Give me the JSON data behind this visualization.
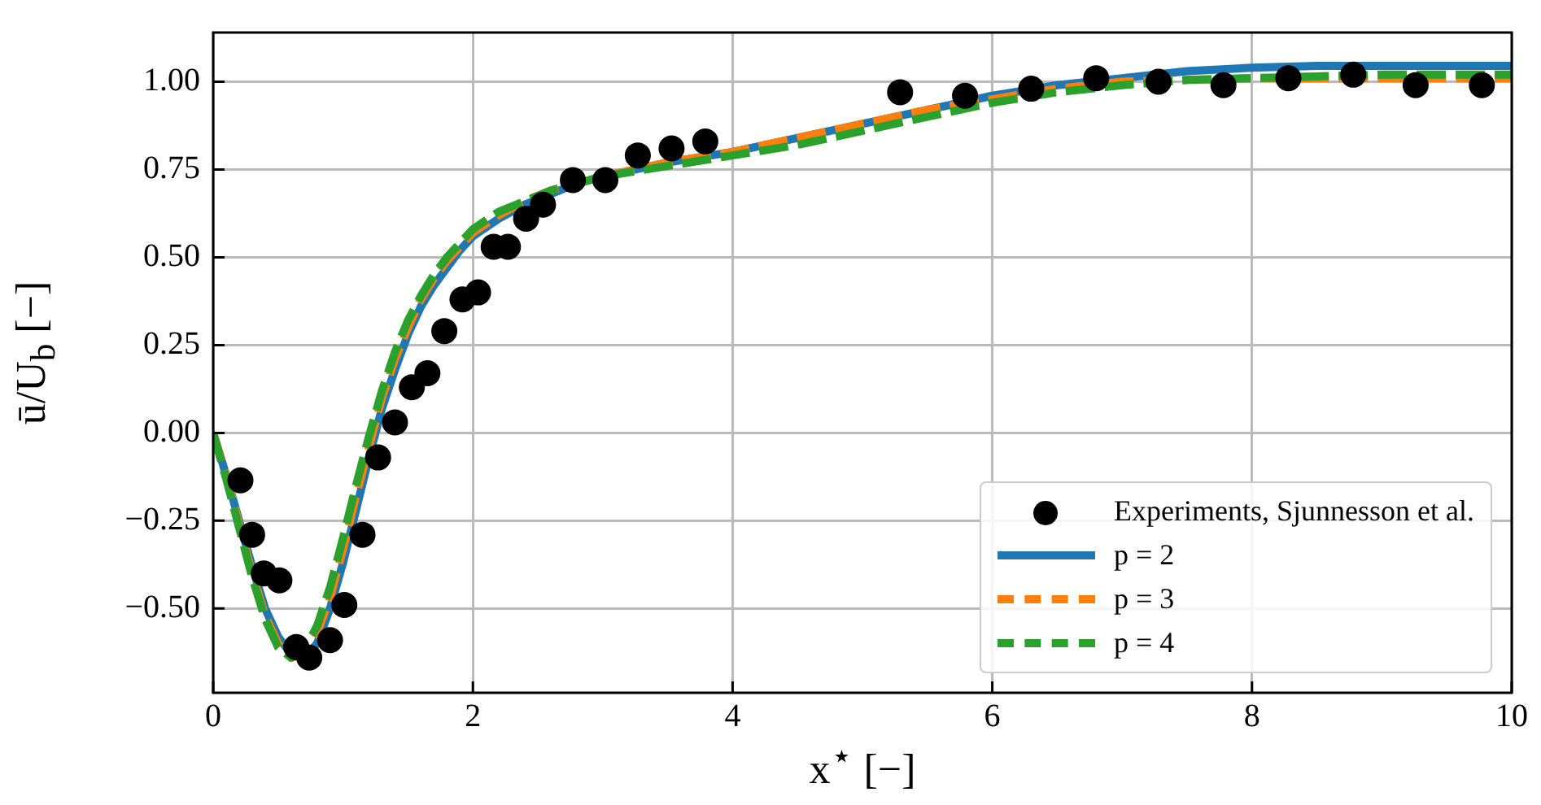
{
  "chart_data": {
    "type": "line",
    "xlabel": "x$^{⋆}$ [−]",
    "ylabel": "ū/U$_{b}$ [−]",
    "xlim": [
      0,
      10
    ],
    "xticks": [
      0,
      2,
      4,
      6,
      8,
      10
    ],
    "ylim": [
      -0.74,
      1.14
    ],
    "yticks": [
      {
        "value": -0.5,
        "label": "−0.50"
      },
      {
        "value": -0.25,
        "label": "−0.25"
      },
      {
        "value": 0,
        "label": "0.00"
      },
      {
        "value": 0.25,
        "label": "0.25"
      },
      {
        "value": 0.5,
        "label": "0.50"
      },
      {
        "value": 0.75,
        "label": "0.75"
      },
      {
        "value": 1,
        "label": "1.00"
      }
    ],
    "grid": true,
    "legend": "bottom right",
    "series": [
      {
        "name": "Experiments, Sjunnesson et al.",
        "type": "scatter",
        "marker": "circle",
        "color": "#000000",
        "x": [
          0.21,
          0.3,
          0.39,
          0.51,
          0.64,
          0.74,
          0.9,
          1.01,
          1.15,
          1.27,
          1.4,
          1.53,
          1.65,
          1.78,
          1.92,
          2.04,
          2.16,
          2.27,
          2.41,
          2.54,
          2.77,
          3.02,
          3.27,
          3.53,
          3.79,
          5.29,
          5.79,
          6.3,
          6.8,
          7.28,
          7.78,
          8.28,
          8.78,
          9.26,
          9.77
        ],
        "values": [
          -0.135,
          -0.29,
          -0.4,
          -0.42,
          -0.61,
          -0.64,
          -0.59,
          -0.49,
          -0.29,
          -0.07,
          0.03,
          0.13,
          0.17,
          0.29,
          0.38,
          0.4,
          0.53,
          0.53,
          0.61,
          0.65,
          0.72,
          0.72,
          0.79,
          0.81,
          0.83,
          0.97,
          0.96,
          0.98,
          1.01,
          1.0,
          0.99,
          1.01,
          1.02,
          0.99,
          0.99
        ]
      },
      {
        "name": "p = 2",
        "type": "line",
        "marker": "none",
        "line_style": "solid",
        "color": "#1f77b4",
        "x": [
          0,
          0.1,
          0.2,
          0.3,
          0.4,
          0.5,
          0.6,
          0.7,
          0.8,
          0.9,
          1.0,
          1.1,
          1.2,
          1.3,
          1.4,
          1.5,
          1.6,
          1.7,
          1.8,
          1.9,
          2.0,
          2.2,
          2.4,
          2.6,
          2.8,
          3.0,
          3.5,
          4,
          4.5,
          5,
          5.5,
          6,
          6.5,
          7,
          7.5,
          8,
          8.5,
          9,
          9.5,
          10
        ],
        "values": [
          0,
          -0.12,
          -0.25,
          -0.38,
          -0.5,
          -0.58,
          -0.63,
          -0.64,
          -0.6,
          -0.5,
          -0.37,
          -0.22,
          -0.07,
          0.07,
          0.18,
          0.28,
          0.36,
          0.42,
          0.47,
          0.52,
          0.56,
          0.61,
          0.65,
          0.68,
          0.71,
          0.73,
          0.77,
          0.8,
          0.84,
          0.88,
          0.92,
          0.96,
          0.99,
          1.01,
          1.03,
          1.04,
          1.045,
          1.045,
          1.045,
          1.045
        ]
      },
      {
        "name": "p = 3",
        "type": "line",
        "marker": "none",
        "line_style": "dashed",
        "color": "#ff7f0e",
        "x": [
          0,
          0.1,
          0.2,
          0.3,
          0.4,
          0.5,
          0.6,
          0.7,
          0.8,
          0.9,
          1.0,
          1.1,
          1.2,
          1.3,
          1.4,
          1.5,
          1.6,
          1.7,
          1.8,
          1.9,
          2.0,
          2.2,
          2.4,
          2.6,
          2.8,
          3.0,
          3.5,
          4,
          4.5,
          5,
          5.5,
          6,
          6.5,
          7,
          7.5,
          8,
          8.5,
          9,
          9.5,
          10
        ],
        "values": [
          0,
          -0.12,
          -0.26,
          -0.4,
          -0.52,
          -0.6,
          -0.64,
          -0.63,
          -0.57,
          -0.47,
          -0.33,
          -0.18,
          -0.04,
          0.1,
          0.21,
          0.3,
          0.38,
          0.44,
          0.49,
          0.53,
          0.57,
          0.62,
          0.66,
          0.69,
          0.71,
          0.73,
          0.77,
          0.8,
          0.84,
          0.88,
          0.92,
          0.95,
          0.98,
          1.0,
          1.005,
          1.01,
          1.01,
          1.01,
          1.01,
          1.01
        ]
      },
      {
        "name": "p = 4",
        "type": "line",
        "marker": "none",
        "line_style": "dashed",
        "color": "#2ca02c",
        "x": [
          0,
          0.1,
          0.2,
          0.3,
          0.4,
          0.5,
          0.6,
          0.7,
          0.8,
          0.9,
          1.0,
          1.1,
          1.2,
          1.3,
          1.4,
          1.5,
          1.6,
          1.7,
          1.8,
          1.9,
          2.0,
          2.2,
          2.4,
          2.6,
          2.8,
          3.0,
          3.5,
          4,
          4.5,
          5,
          5.5,
          6,
          6.5,
          7,
          7.5,
          8,
          8.5,
          9,
          9.5,
          10
        ],
        "values": [
          0,
          -0.13,
          -0.27,
          -0.41,
          -0.53,
          -0.61,
          -0.64,
          -0.62,
          -0.55,
          -0.44,
          -0.3,
          -0.15,
          -0.01,
          0.12,
          0.23,
          0.32,
          0.39,
          0.45,
          0.5,
          0.54,
          0.58,
          0.63,
          0.66,
          0.69,
          0.71,
          0.73,
          0.76,
          0.79,
          0.82,
          0.86,
          0.9,
          0.94,
          0.97,
          0.99,
          1.005,
          1.01,
          1.015,
          1.02,
          1.02,
          1.02
        ]
      }
    ]
  }
}
